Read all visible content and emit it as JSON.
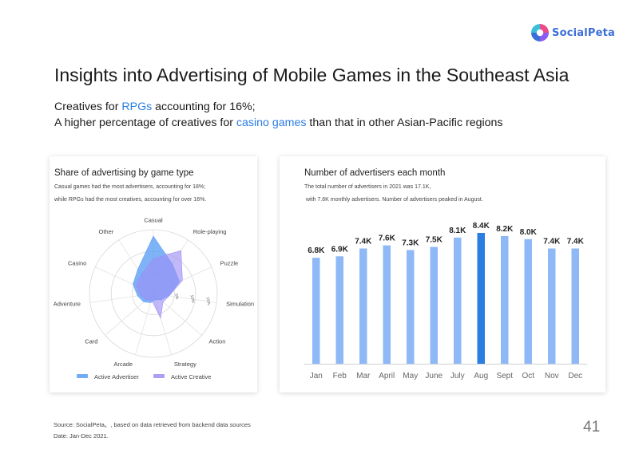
{
  "header": {
    "logo_text": "SocialPeta",
    "title": "Insights into Advertising of Mobile Games in the Southeast Asia",
    "subtitle_line1_pre": "Creatives for ",
    "subtitle_line1_hl": "RPGs",
    "subtitle_line1_post": " accounting for 16%;",
    "subtitle_line2_pre": "A higher percentage of creatives for ",
    "subtitle_line2_hl": "casino games",
    "subtitle_line2_post": " than that in other Asian-Pacific regions"
  },
  "left_card": {
    "title": "Share of advertising by game type",
    "note1": "Casual games had the most advertisers, accounting for 18%;",
    "note2": "while RPGs had the most creatives, accounting for over 16%."
  },
  "right_card": {
    "title": "Number of advertisers each month",
    "note1": "The total number of advertisers in 2021 was 17.1K,",
    "note2": "with 7.6K monthly advertisers. Number of advertisers peaked in August."
  },
  "footer": {
    "source": "Source: SocialPeta。, based on data retrieved from backend data sources",
    "date": "Date: Jan-Dec 2021.",
    "page_number": "41"
  },
  "colors": {
    "advertiser": "#5b9ef5",
    "creative": "#9d8ef5",
    "bar": "#8fb8f7",
    "bar_peak": "#2a7de1",
    "accent": "#2a7de1"
  },
  "chart_data": [
    {
      "type": "radar",
      "axes": [
        "Casual",
        "Role-playing",
        "Puzzle",
        "Simulation",
        "Action",
        "Strategy",
        "Arcade",
        "Card",
        "Adventure",
        "Casino",
        "Other"
      ],
      "ring_labels": [
        "5%",
        "10%",
        "15%"
      ],
      "rmax": 20,
      "series": [
        {
          "name": "Active Advertiser",
          "values": [
            18,
            11,
            9,
            5,
            3,
            2,
            3,
            4,
            5,
            7,
            9
          ]
        },
        {
          "name": "Active Creative",
          "values": [
            11,
            16,
            10,
            5,
            4,
            8,
            2,
            3,
            4,
            6,
            7
          ]
        }
      ],
      "legend_position": "bottom"
    },
    {
      "type": "bar",
      "categories": [
        "Jan",
        "Feb",
        "Mar",
        "April",
        "May",
        "June",
        "July",
        "Aug",
        "Sept",
        "Oct",
        "Nov",
        "Dec"
      ],
      "values": [
        6.8,
        6.9,
        7.4,
        7.6,
        7.3,
        7.5,
        8.1,
        8.4,
        8.2,
        8.0,
        7.4,
        7.4
      ],
      "labels": [
        "6.8K",
        "6.9K",
        "7.4K",
        "7.6K",
        "7.3K",
        "7.5K",
        "8.1K",
        "8.4K",
        "8.2K",
        "8.0K",
        "7.4K",
        "7.4K"
      ],
      "highlight_category": "Aug",
      "unit": "K",
      "ylim": [
        0,
        8.4
      ]
    }
  ]
}
